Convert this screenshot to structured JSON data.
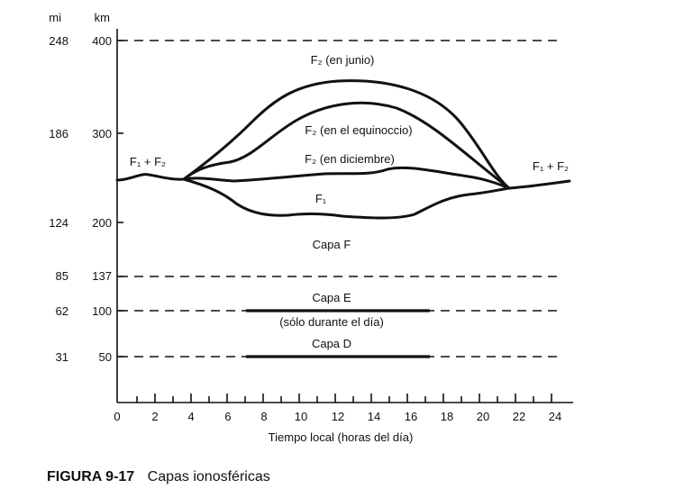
{
  "figure": {
    "number": "FIGURA 9-17",
    "title": "Capas ionosféricas"
  },
  "axes": {
    "left_unit_mi": "mi",
    "left_unit_km": "km",
    "xlabel": "Tiempo local (horas del día)",
    "x_ticks": [
      "0",
      "2",
      "4",
      "6",
      "8",
      "10",
      "12",
      "14",
      "16",
      "18",
      "20",
      "22",
      "24"
    ],
    "levels": [
      {
        "mi": "248",
        "km": "400"
      },
      {
        "mi": "186",
        "km": "300"
      },
      {
        "mi": "124",
        "km": "200"
      },
      {
        "mi": "85",
        "km": "137"
      },
      {
        "mi": "62",
        "km": "100"
      },
      {
        "mi": "31",
        "km": "50"
      }
    ]
  },
  "labels": {
    "f1f2_left": "F₁ + F₂",
    "f1f2_right": "F₁ + F₂",
    "f2_june": "F₂ (en junio)",
    "f2_equinox": "F₂ (en el equinoccio)",
    "f2_december": "F₂ (en diciembre)",
    "f1": "F₁",
    "layer_f": "Capa F",
    "layer_e": "Capa E",
    "layer_e_note": "(sólo durante el día)",
    "layer_d": "Capa D"
  }
}
